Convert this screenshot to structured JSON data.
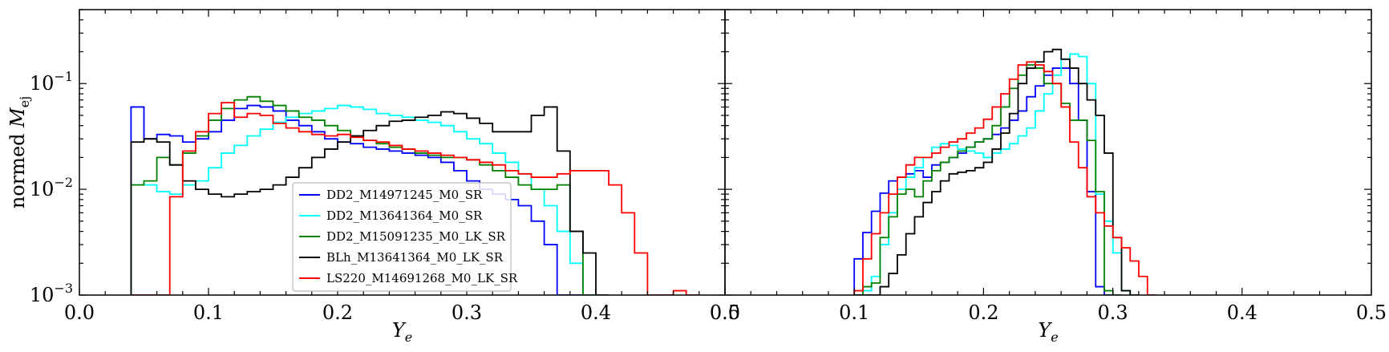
{
  "colors": {
    "DD2_M14971245_M0_SR": "#0000ff",
    "DD2_M13641364_M0_SR": "#00ffff",
    "DD2_M15091235_M0_LK_SR": "#008000",
    "BLh_M13641364_M0_LK_SR": "#000000",
    "LS220_M14691268_M0_LK_SR": "#ff0000"
  },
  "chart_data": [
    {
      "type": "line",
      "ylabel": "normed M_ej",
      "ylabel_italic": "M",
      "ylabel_sub": "ej",
      "ylabel_prefix": "normed ",
      "xlabel": "Y_e",
      "xlabel_main": "Y",
      "xlabel_sub": "e",
      "xlim": [
        0.0,
        0.5
      ],
      "ylim": [
        0.001,
        0.5
      ],
      "yscale": "log",
      "drawstyle": "steps-post",
      "x_ticks": [
        "0.0",
        "0.1",
        "0.2",
        "0.3",
        "0.4",
        "0.5"
      ],
      "y_ticks": [
        {
          "base": "10",
          "exp": "−3"
        },
        {
          "base": "10",
          "exp": "−2"
        },
        {
          "base": "10",
          "exp": "−1"
        }
      ],
      "legend_position": "lower-center",
      "legend": [
        "DD2_M14971245_M0_SR",
        "DD2_M13641364_M0_SR",
        "DD2_M15091235_M0_LK_SR",
        "BLh_M13641364_M0_LK_SR",
        "LS220_M14691268_M0_LK_SR"
      ],
      "bins": {
        "start": 0.04,
        "width": 0.01
      },
      "series": [
        {
          "name": "DD2_M14971245_M0_SR",
          "color": "#0000ff",
          "values": [
            0.06,
            0.03,
            0.033,
            0.032,
            0.028,
            0.03,
            0.035,
            0.045,
            0.058,
            0.062,
            0.06,
            0.055,
            0.045,
            0.04,
            0.035,
            0.03,
            0.028,
            0.027,
            0.025,
            0.024,
            0.023,
            0.022,
            0.021,
            0.02,
            0.018,
            0.015,
            0.012,
            0.01,
            0.009,
            0.008,
            0.007,
            0.005,
            0.003,
            0.001,
            0.0008
          ]
        },
        {
          "name": "DD2_M13641364_M0_SR",
          "color": "#00ffff",
          "values": [
            0.011,
            0.011,
            0.0095,
            0.009,
            0.011,
            0.012,
            0.016,
            0.022,
            0.026,
            0.032,
            0.037,
            0.043,
            0.048,
            0.052,
            0.055,
            0.058,
            0.062,
            0.06,
            0.057,
            0.052,
            0.05,
            0.048,
            0.045,
            0.043,
            0.04,
            0.035,
            0.03,
            0.027,
            0.022,
            0.018,
            0.014,
            0.01,
            0.007,
            0.004,
            0.002,
            0.0008
          ]
        },
        {
          "name": "DD2_M15091235_M0_LK_SR",
          "color": "#008000",
          "values": [
            0.011,
            0.012,
            0.02,
            0.017,
            0.022,
            0.032,
            0.045,
            0.058,
            0.07,
            0.075,
            0.068,
            0.062,
            0.055,
            0.048,
            0.045,
            0.04,
            0.036,
            0.032,
            0.029,
            0.027,
            0.025,
            0.024,
            0.022,
            0.021,
            0.02,
            0.02,
            0.019,
            0.017,
            0.015,
            0.013,
            0.011,
            0.01,
            0.01,
            0.011,
            0.004,
            0.0008
          ]
        },
        {
          "name": "BLh_M13641364_M0_LK_SR",
          "color": "#000000",
          "values": [
            0.028,
            0.03,
            0.028,
            0.017,
            0.012,
            0.01,
            0.009,
            0.0085,
            0.009,
            0.0095,
            0.01,
            0.011,
            0.013,
            0.016,
            0.02,
            0.024,
            0.028,
            0.032,
            0.036,
            0.04,
            0.044,
            0.045,
            0.048,
            0.05,
            0.054,
            0.052,
            0.047,
            0.042,
            0.035,
            0.035,
            0.035,
            0.05,
            0.06,
            0.023,
            0.004,
            0.0025,
            0.0008
          ]
        },
        {
          "name": "LS220_M14691268_M0_LK_SR",
          "color": "#ff0000",
          "values": [
            0.0008,
            0.0008,
            0.0008,
            0.0085,
            0.023,
            0.035,
            0.052,
            0.066,
            0.048,
            0.052,
            0.05,
            0.042,
            0.038,
            0.035,
            0.033,
            0.032,
            0.033,
            0.031,
            0.029,
            0.028,
            0.026,
            0.024,
            0.023,
            0.022,
            0.021,
            0.02,
            0.019,
            0.018,
            0.017,
            0.015,
            0.014,
            0.013,
            0.013,
            0.014,
            0.015,
            0.015,
            0.015,
            0.011,
            0.006,
            0.0025,
            0.0008,
            0.0008,
            0.0011,
            0.0008
          ]
        }
      ]
    },
    {
      "type": "line",
      "xlabel": "Y_e",
      "xlabel_main": "Y",
      "xlabel_sub": "e",
      "xlim": [
        0.0,
        0.5
      ],
      "ylim": [
        0.001,
        0.5
      ],
      "yscale": "log",
      "drawstyle": "steps-post",
      "x_ticks": [
        "0.0",
        "0.1",
        "0.2",
        "0.3",
        "0.4",
        "0.5"
      ],
      "bins": {
        "start": 0.1,
        "width": 0.00667
      },
      "series": [
        {
          "name": "DD2_M14971245_M0_SR",
          "color": "#0000ff",
          "values": [
            0.0022,
            0.0039,
            0.0062,
            0.0092,
            0.012,
            0.013,
            0.014,
            0.015,
            0.013,
            0.017,
            0.018,
            0.02,
            0.022,
            0.025,
            0.028,
            0.03,
            0.033,
            0.038,
            0.045,
            0.055,
            0.075,
            0.095,
            0.12,
            0.14,
            0.14,
            0.1,
            0.045,
            0.0095,
            0.0012,
            0.0008
          ]
        },
        {
          "name": "DD2_M13641364_M0_SR",
          "color": "#00ffff",
          "values": [
            0.001,
            0.0011,
            0.0015,
            0.003,
            0.006,
            0.01,
            0.013,
            0.016,
            0.02,
            0.025,
            0.027,
            0.026,
            0.024,
            0.023,
            0.022,
            0.02,
            0.022,
            0.024,
            0.027,
            0.032,
            0.038,
            0.055,
            0.08,
            0.12,
            0.17,
            0.19,
            0.18,
            0.1,
            0.009,
            0.005,
            0.0025,
            0.0011,
            0.0008
          ]
        },
        {
          "name": "DD2_M15091235_M0_LK_SR",
          "color": "#008000",
          "values": [
            0.0009,
            0.0012,
            0.0013,
            0.0035,
            0.0055,
            0.009,
            0.01,
            0.0085,
            0.012,
            0.015,
            0.018,
            0.02,
            0.023,
            0.025,
            0.028,
            0.03,
            0.04,
            0.06,
            0.09,
            0.12,
            0.15,
            0.14,
            0.1,
            0.1,
            0.065,
            0.045,
            0.045,
            0.029,
            0.0095,
            0.0011,
            0.0008
          ]
        },
        {
          "name": "BLh_M13641364_M0_LK_SR",
          "color": "#000000",
          "values": [
            0.0008,
            0.0008,
            0.001,
            0.0012,
            0.0016,
            0.0024,
            0.0038,
            0.0055,
            0.0075,
            0.0095,
            0.012,
            0.014,
            0.0145,
            0.015,
            0.016,
            0.018,
            0.024,
            0.034,
            0.052,
            0.1,
            0.14,
            0.16,
            0.2,
            0.21,
            0.17,
            0.14,
            0.1,
            0.07,
            0.05,
            0.022,
            0.0035,
            0.0011,
            0.0008
          ]
        },
        {
          "name": "LS220_M14691268_M0_LK_SR",
          "color": "#ff0000",
          "values": [
            0.0011,
            0.0022,
            0.0038,
            0.006,
            0.009,
            0.013,
            0.017,
            0.02,
            0.02,
            0.022,
            0.025,
            0.028,
            0.03,
            0.034,
            0.038,
            0.046,
            0.06,
            0.08,
            0.11,
            0.15,
            0.16,
            0.15,
            0.13,
            0.1,
            0.06,
            0.028,
            0.016,
            0.0085,
            0.006,
            0.0045,
            0.0035,
            0.0028,
            0.0021,
            0.0015,
            0.0008
          ]
        }
      ]
    }
  ]
}
